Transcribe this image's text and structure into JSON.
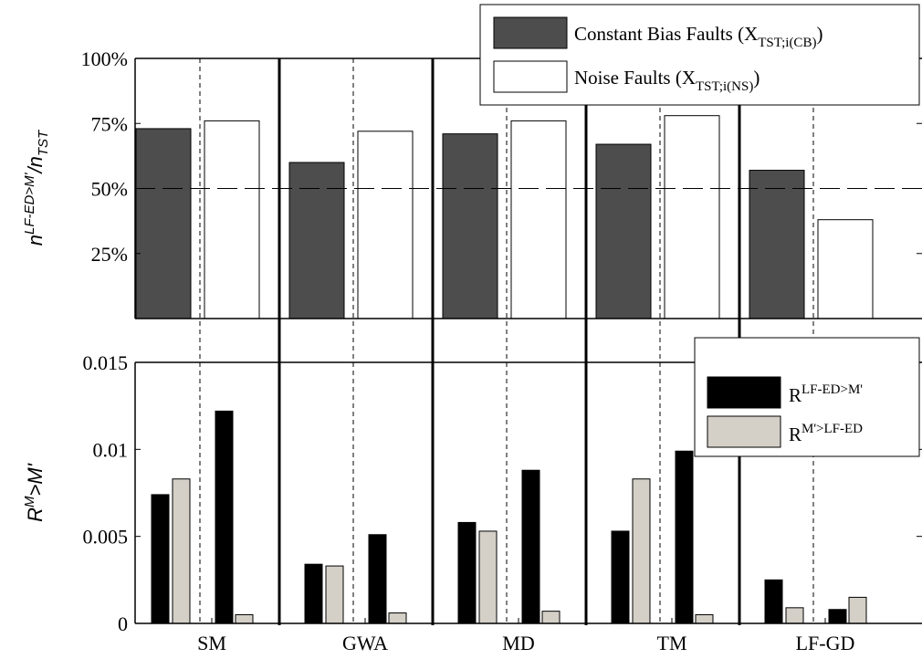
{
  "chart_data": [
    {
      "type": "bar",
      "categories": [
        "SM",
        "GWA",
        "MD",
        "TM",
        "LF-GD"
      ],
      "ylabel": "n^{LF-ED>M'}/n_{TST}",
      "ylabel_parts": {
        "n1": "n",
        "sup": "LF-ED>M'",
        "slash": "/n",
        "sub": "TST"
      },
      "yticks": [
        "25%",
        "50%",
        "75%",
        "100%"
      ],
      "ytick_values": [
        25,
        50,
        75,
        100
      ],
      "ylim": [
        0,
        100
      ],
      "reference_line": 50,
      "series": [
        {
          "name": "Constant Bias Faults (X_{TST;i(CB)})",
          "color": "#4d4d4d",
          "values": [
            73,
            60,
            71,
            67,
            57
          ]
        },
        {
          "name": "Noise Faults (X_{TST;i(NS)})",
          "color": "#ffffff",
          "values": [
            76,
            72,
            76,
            78,
            38
          ]
        }
      ],
      "legend": {
        "position": "top-right",
        "items": [
          {
            "main": "Constant Bias Faults (X",
            "sub": "TST;i(CB)",
            "close": ")"
          },
          {
            "main": "Noise Faults (X",
            "sub": "TST;i(NS)",
            "close": ")"
          }
        ]
      },
      "grid": false
    },
    {
      "type": "bar",
      "categories": [
        "SM",
        "GWA",
        "MD",
        "TM",
        "LF-GD"
      ],
      "ylabel": "R^{M}>M'",
      "ylabel_parts": {
        "r": "R",
        "sup": "M",
        "rest": ">M'"
      },
      "yticks": [
        "0",
        "0.005",
        "0.01",
        "0.015"
      ],
      "ytick_values": [
        0,
        0.005,
        0.01,
        0.015
      ],
      "ylim": [
        0,
        0.015
      ],
      "series": [
        {
          "name": "R^{LF-ED>M'} (Constant Bias)",
          "color": "#000000",
          "values": [
            0.0074,
            0.0034,
            0.0058,
            0.0053,
            0.0025
          ]
        },
        {
          "name": "R^{M'>LF-ED} (Constant Bias)",
          "color": "#d4d0c8",
          "values": [
            0.0083,
            0.0033,
            0.0053,
            0.0083,
            0.0009
          ]
        },
        {
          "name": "R^{LF-ED>M'} (Noise)",
          "color": "#000000",
          "values": [
            0.0122,
            0.0051,
            0.0088,
            0.0099,
            0.0008
          ]
        },
        {
          "name": "R^{M'>LF-ED} (Noise)",
          "color": "#d4d0c8",
          "values": [
            0.0005,
            0.0006,
            0.0007,
            0.0005,
            0.0015
          ]
        }
      ],
      "legend": {
        "position": "top-right",
        "items": [
          {
            "main": "R",
            "sup": "LF-ED>M'",
            "color": "#000000"
          },
          {
            "main": "R",
            "sup": "M'>LF-ED",
            "color": "#d4d0c8"
          }
        ]
      },
      "grid": false
    }
  ]
}
